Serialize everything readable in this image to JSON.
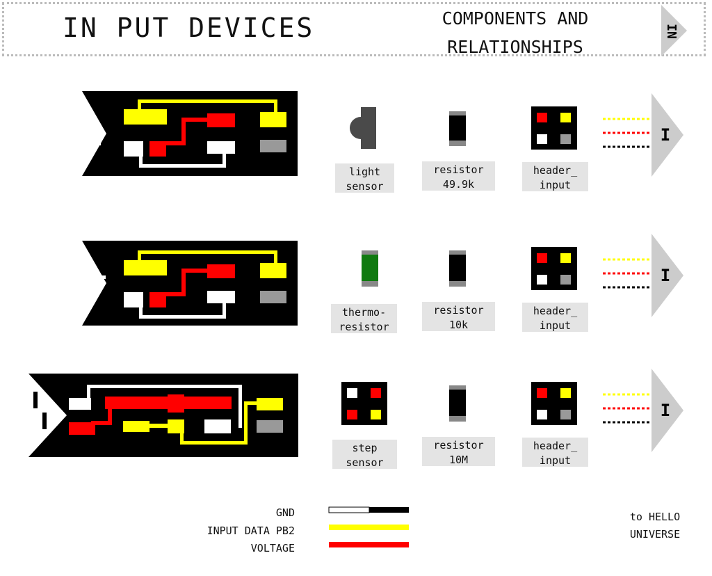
{
  "header": {
    "title": "IN PUT DEVICES",
    "subtitle_line1": "COMPONENTS AND",
    "subtitle_line2": "RELATIONSHIPS",
    "arrow_label": "IN"
  },
  "colors": {
    "gnd": "#ffffff",
    "input_data": "#ffff00",
    "voltage": "#ff0000",
    "board": "#000000",
    "pad_grey": "#999999",
    "arrow": "#cccccc",
    "label_bg": "#e4e4e4"
  },
  "rows": [
    {
      "glyph": "L",
      "component": {
        "line1": "light",
        "line2": "sensor",
        "icon": "light-sensor-icon"
      },
      "resistor": {
        "line1": "resistor",
        "line2": "49.9k"
      },
      "header": {
        "line1": "header_",
        "line2": "input"
      },
      "arrow_label": "I"
    },
    {
      "glyph": "T",
      "component": {
        "line1": "thermo-",
        "line2": "resistor",
        "icon": "thermistor-icon"
      },
      "resistor": {
        "line1": "resistor",
        "line2": "10k"
      },
      "header": {
        "line1": "header_",
        "line2": "input"
      },
      "arrow_label": "I"
    },
    {
      "glyph": "S",
      "component": {
        "line1": "step",
        "line2": "sensor",
        "icon": "step-sensor-icon"
      },
      "resistor": {
        "line1": "resistor",
        "line2": "10M"
      },
      "header": {
        "line1": "header_",
        "line2": "input"
      },
      "arrow_label": "I"
    }
  ],
  "legend": {
    "gnd": "GND",
    "input_data": "INPUT DATA PB2",
    "voltage": "VOLTAGE"
  },
  "destination": {
    "line1": "to HELLO",
    "line2": "UNIVERSE"
  }
}
